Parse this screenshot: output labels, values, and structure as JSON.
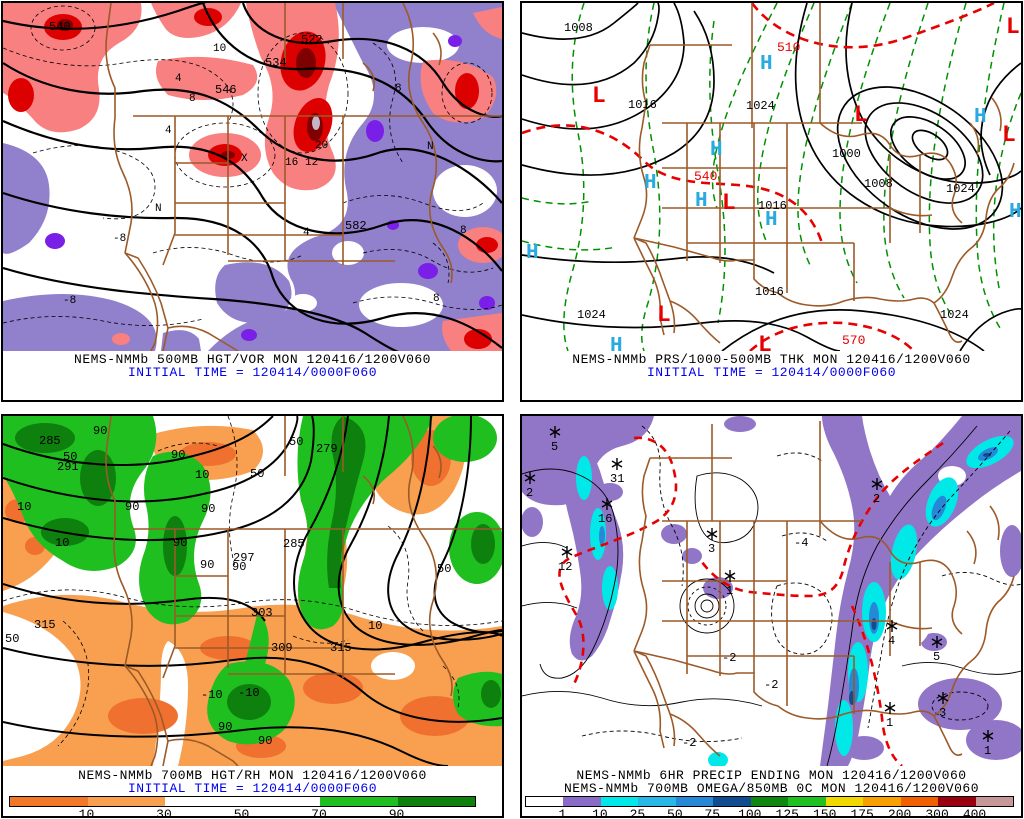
{
  "panels": {
    "tl": {
      "caption1": "NEMS-NMMb 500MB HGT/VOR MON 120416/1200V060",
      "caption2": "INITIAL TIME = 120414/0000F060",
      "height_labels": [
        "540",
        "522",
        "534",
        "546",
        "582"
      ],
      "vort_labels": [
        "8",
        "-8",
        "4",
        "10",
        "12",
        "16",
        "20",
        "8",
        "4",
        "8",
        "N",
        "X",
        "N",
        "4",
        "8",
        "-8"
      ]
    },
    "tr": {
      "caption1": "NEMS-NMMb PRS/1000-500MB THK MON 120416/1200V060",
      "caption2": "INITIAL TIME = 120414/0000F060",
      "isobar_labels": [
        "1008",
        "1016",
        "1024",
        "1000",
        "1008",
        "1016",
        "1024",
        "1016",
        "1024",
        "1024"
      ],
      "thickness_labels": [
        "510",
        "540",
        "570"
      ],
      "high_symbol": "H",
      "low_symbol": "L"
    },
    "bl": {
      "caption1": "NEMS-NMMb 700MB HGT/RH MON 120416/1200V060",
      "caption2": "INITIAL TIME = 120414/0000F060",
      "height_labels": [
        "285",
        "291",
        "279",
        "285",
        "297",
        "303",
        "309",
        "315",
        "315"
      ],
      "rh_labels": [
        "90",
        "90",
        "90",
        "90",
        "90",
        "90",
        "90",
        "90",
        "90",
        "50",
        "50",
        "50",
        "50",
        "50",
        "10",
        "10",
        "10",
        "10",
        "-10",
        "-10"
      ],
      "colorbar": {
        "colors": [
          "#F07828",
          "#F8A050",
          "#FFFFFF",
          "#FFFFFF",
          "#1FBF1F",
          "#0E800E"
        ],
        "labels": [
          "10",
          "30",
          "50",
          "70",
          "90"
        ]
      }
    },
    "br": {
      "caption1": "NEMS-NMMb 6HR PRECIP ENDING MON 120416/1200V060",
      "caption2": "NEMS-NMMb 700MB OMEGA/850MB 0C MON 120416/1200V060",
      "omega_labels": [
        "5",
        "2",
        "31",
        "16",
        "12",
        "3",
        "1",
        "2",
        "4",
        "5",
        "1",
        "3",
        "1"
      ],
      "contour_labels": [
        "-2",
        "-2",
        "-2",
        "-4"
      ],
      "colorbar": {
        "colors": [
          "#FFFFFF",
          "#8A6BC8",
          "#00E8E8",
          "#28B8E8",
          "#2888D8",
          "#104C90",
          "#108810",
          "#1FC01F",
          "#F0D800",
          "#F8A000",
          "#F06000",
          "#980010",
          "#C89898"
        ],
        "labels": [
          "1",
          "10",
          "25",
          "50",
          "75",
          "100",
          "125",
          "150",
          "175",
          "200",
          "300",
          "400"
        ]
      }
    }
  }
}
